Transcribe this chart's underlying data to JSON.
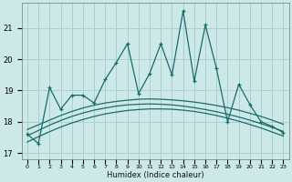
{
  "xlabel": "Humidex (Indice chaleur)",
  "background_color": "#cce9e8",
  "grid_color": "#aacfcf",
  "line_color": "#1a6b6b",
  "x_main": [
    0,
    1,
    2,
    3,
    4,
    5,
    6,
    7,
    8,
    9,
    10,
    11,
    12,
    13,
    14,
    15,
    16,
    17,
    18,
    19,
    20,
    21,
    22,
    23
  ],
  "y_main": [
    17.6,
    17.3,
    19.1,
    18.4,
    18.85,
    18.85,
    18.6,
    19.35,
    19.9,
    20.5,
    18.9,
    19.55,
    20.5,
    19.5,
    21.55,
    19.3,
    21.1,
    19.7,
    18.0,
    19.2,
    18.55,
    18.0,
    17.85,
    17.65
  ],
  "y_trend1": [
    17.75,
    17.9,
    18.05,
    18.2,
    18.33,
    18.44,
    18.53,
    18.6,
    18.65,
    18.69,
    18.72,
    18.73,
    18.72,
    18.7,
    18.67,
    18.63,
    18.58,
    18.52,
    18.45,
    18.37,
    18.27,
    18.17,
    18.05,
    17.92
  ],
  "y_trend2": [
    17.55,
    17.72,
    17.89,
    18.04,
    18.17,
    18.28,
    18.37,
    18.44,
    18.5,
    18.54,
    18.56,
    18.57,
    18.56,
    18.54,
    18.5,
    18.45,
    18.39,
    18.32,
    18.24,
    18.15,
    18.05,
    17.94,
    17.82,
    17.69
  ],
  "y_trend3": [
    17.35,
    17.52,
    17.68,
    17.83,
    17.96,
    18.07,
    18.17,
    18.25,
    18.31,
    18.36,
    18.39,
    18.41,
    18.41,
    18.4,
    18.37,
    18.33,
    18.27,
    18.2,
    18.11,
    18.02,
    17.91,
    17.8,
    17.67,
    17.54
  ],
  "ylim": [
    16.8,
    21.8
  ],
  "xlim": [
    -0.5,
    23.5
  ],
  "yticks": [
    17,
    18,
    19,
    20,
    21
  ],
  "xtick_labels": [
    "0",
    "1",
    "2",
    "3",
    "4",
    "5",
    "6",
    "7",
    "8",
    "9",
    "10",
    "11",
    "12",
    "13",
    "14",
    "15",
    "16",
    "17",
    "18",
    "19",
    "20",
    "21",
    "22",
    "23"
  ]
}
